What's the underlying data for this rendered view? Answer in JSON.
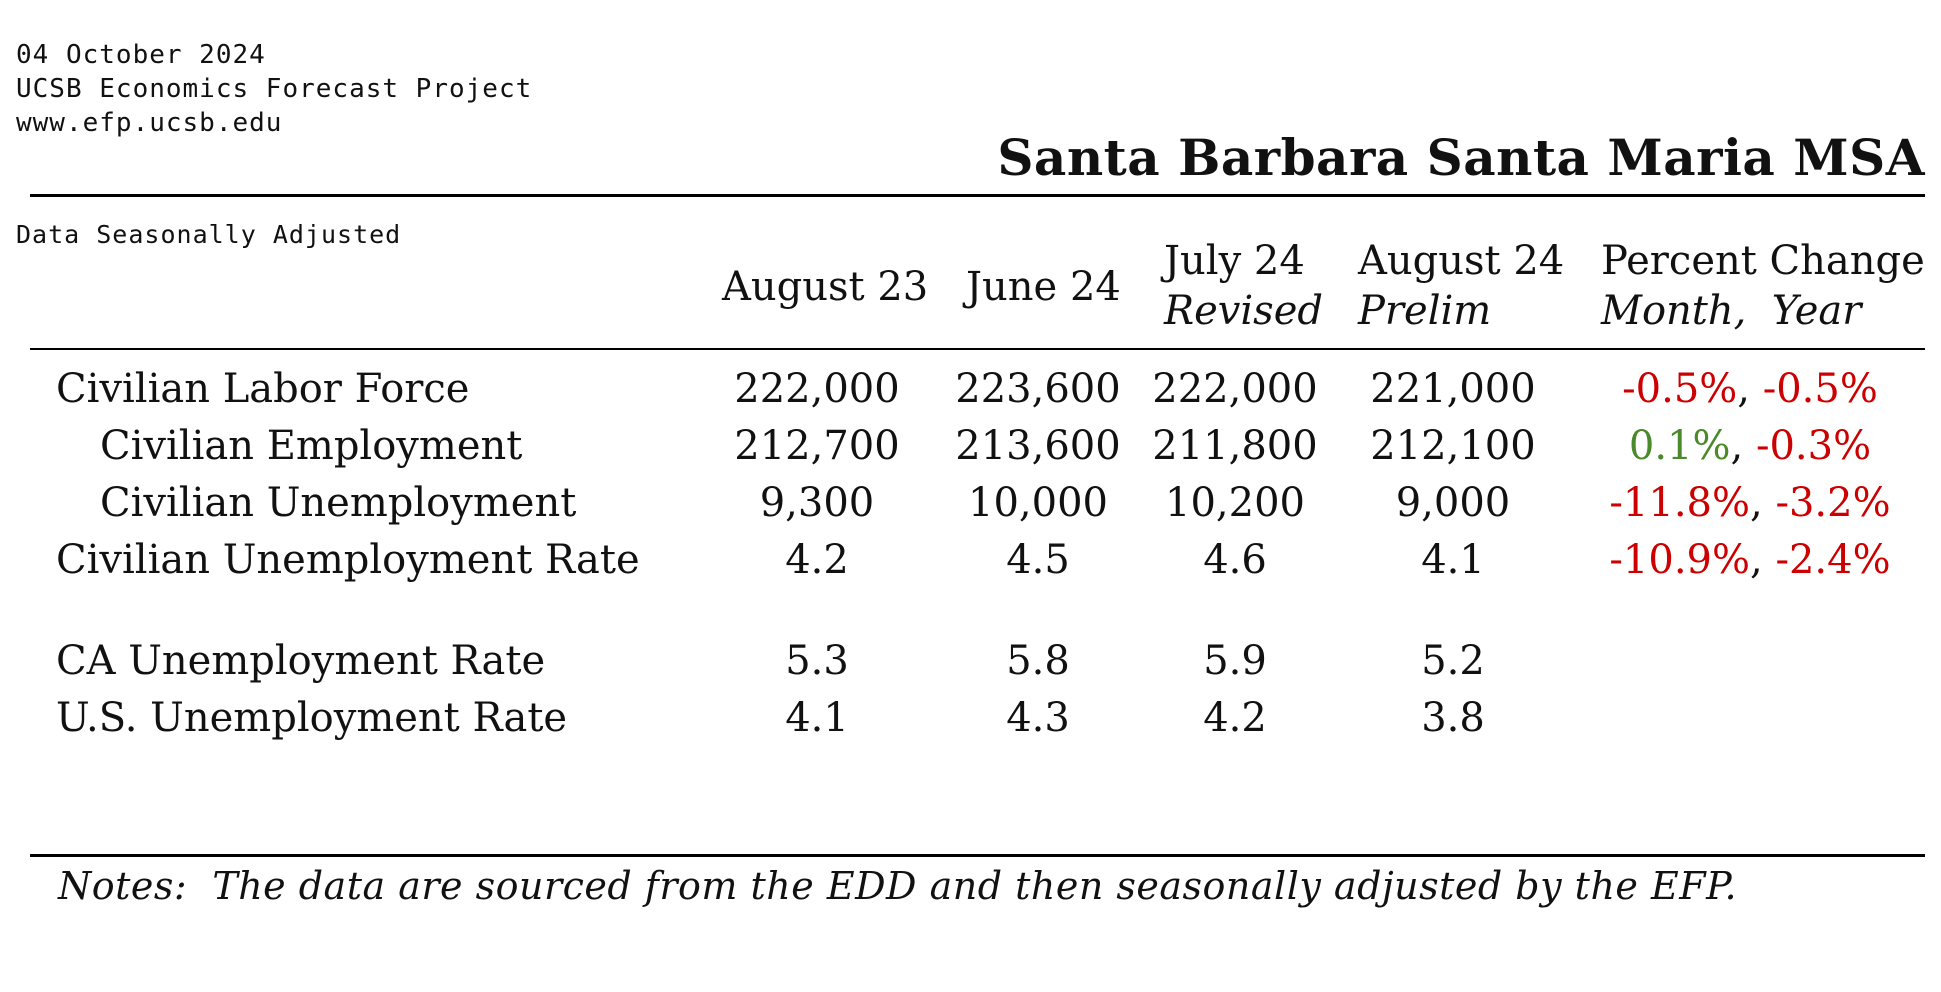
{
  "header": {
    "date": "04 October 2024",
    "organization": "UCSB Economics Forecast Project",
    "website": "www.efp.ucsb.edu",
    "title": "Santa Barbara Santa Maria MSA"
  },
  "table": {
    "note_top": "Data Seasonally Adjusted",
    "columns": [
      {
        "label": "August 23",
        "sub": ""
      },
      {
        "label": "June 24",
        "sub": ""
      },
      {
        "label": "July 24",
        "sub": "Revised"
      },
      {
        "label": "August 24",
        "sub": "Prelim"
      },
      {
        "label": "Percent Change",
        "sub": "Month,  Year"
      }
    ],
    "rows": [
      {
        "label": "Civilian Labor Force",
        "indent": false,
        "values": [
          "222,000",
          "223,600",
          "222,000",
          "221,000"
        ],
        "month_change": "-0.5%",
        "year_change": "-0.5%"
      },
      {
        "label": "Civilian Employment",
        "indent": true,
        "values": [
          "212,700",
          "213,600",
          "211,800",
          "212,100"
        ],
        "month_change": "0.1%",
        "year_change": "-0.3%"
      },
      {
        "label": "Civilian Unemployment",
        "indent": true,
        "values": [
          "9,300",
          "10,000",
          "10,200",
          "9,000"
        ],
        "month_change": "-11.8%",
        "year_change": "-3.2%"
      },
      {
        "label": "Civilian Unemployment Rate",
        "indent": false,
        "values": [
          "4.2",
          "4.5",
          "4.6",
          "4.1"
        ],
        "month_change": "-10.9%",
        "year_change": "-2.4%"
      },
      {
        "label": "CA Unemployment Rate",
        "indent": false,
        "values": [
          "5.3",
          "5.8",
          "5.9",
          "5.2"
        ],
        "month_change": "",
        "year_change": ""
      },
      {
        "label": "U.S. Unemployment Rate",
        "indent": false,
        "values": [
          "4.1",
          "4.3",
          "4.2",
          "3.8"
        ],
        "month_change": "",
        "year_change": ""
      }
    ],
    "separator": ", ",
    "colors": {
      "negative": "#cc0000",
      "positive": "#4a8a2a"
    }
  },
  "notes": "Notes:  The data are sourced from the EDD and then seasonally adjusted by the EFP."
}
